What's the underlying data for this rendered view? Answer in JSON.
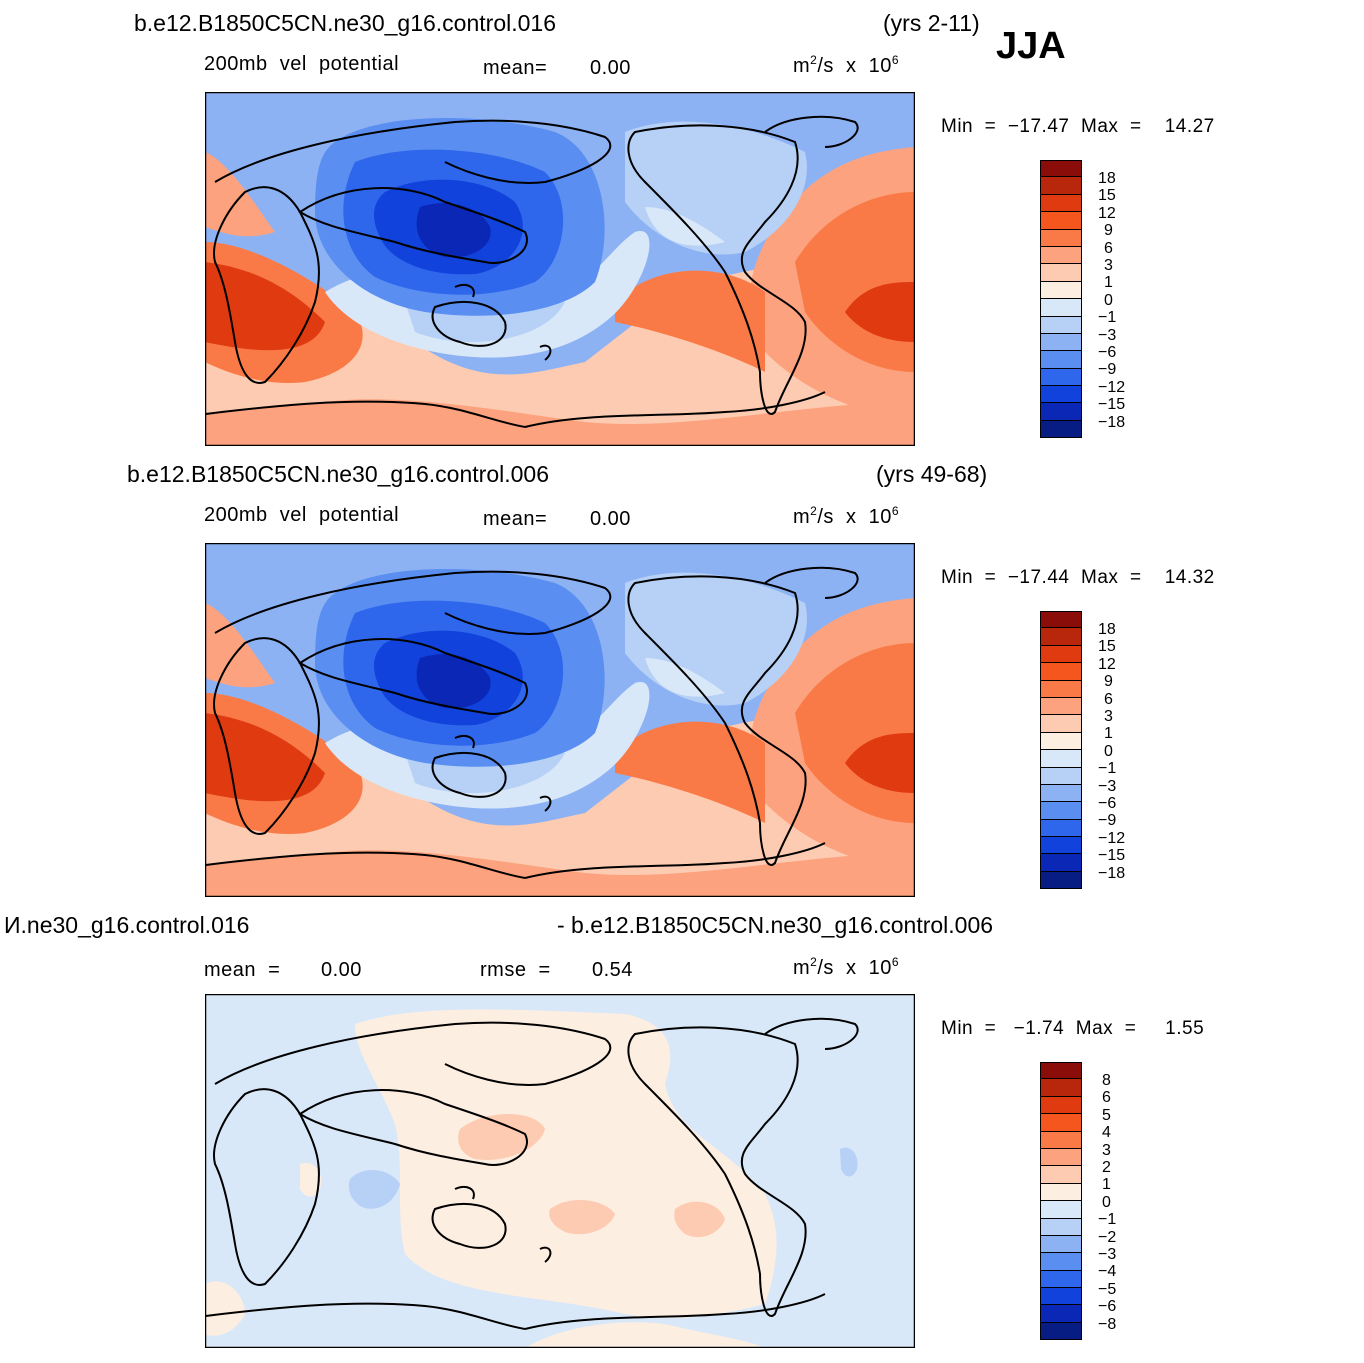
{
  "season": "JJA",
  "panels": [
    {
      "case": "b.e12.B1850C5CN.ne30_g16.control.016",
      "years": "(yrs 2-11)",
      "variable": "200mb  vel  potential",
      "mean_label": "mean=",
      "mean_value": "0.00",
      "units_base": "m",
      "units_sup": "2",
      "units_mid": "/s  x  10",
      "units_exp": "6",
      "minmax": "Min  =  −17.47  Max  =    14.27",
      "colorbar_labels": [
        "18",
        "15",
        "12",
        "9",
        "6",
        "3",
        "1",
        "0",
        "−1",
        "−3",
        "−6",
        "−9",
        "−12",
        "−15",
        "−18"
      ]
    },
    {
      "case": "b.e12.B1850C5CN.ne30_g16.control.006",
      "years": "(yrs 49-68)",
      "variable": "200mb  vel  potential",
      "mean_label": "mean=",
      "mean_value": "0.00",
      "units_base": "m",
      "units_sup": "2",
      "units_mid": "/s  x  10",
      "units_exp": "6",
      "minmax": "Min  =  −17.44  Max  =    14.32",
      "colorbar_labels": [
        "18",
        "15",
        "12",
        "9",
        "6",
        "3",
        "1",
        "0",
        "−1",
        "−3",
        "−6",
        "−9",
        "−12",
        "−15",
        "−18"
      ]
    },
    {
      "case_left": "И.ne30_g16.control.016",
      "case_right": "- b.e12.B1850C5CN.ne30_g16.control.006",
      "mean_label": "mean  =",
      "mean_value": "0.00",
      "rmse_label": "rmse  =",
      "rmse_value": "0.54",
      "units_base": "m",
      "units_sup": "2",
      "units_mid": "/s  x  10",
      "units_exp": "6",
      "minmax": "Min  =   −1.74  Max  =     1.55",
      "colorbar_labels": [
        "8",
        "6",
        "5",
        "4",
        "3",
        "2",
        "1",
        "0",
        "−1",
        "−2",
        "−3",
        "−4",
        "−5",
        "−6",
        "−8"
      ]
    }
  ],
  "palette": {
    "colorbar_top_to_bottom": [
      "#8b0d0a",
      "#b8260c",
      "#df3a10",
      "#f4561e",
      "#f97a46",
      "#fca27e",
      "#fdcbb1",
      "#fdeee2",
      "#d9e8f8",
      "#b6d0f6",
      "#8db2f4",
      "#5a8ff1",
      "#2f67ec",
      "#1143dc",
      "#0a27b5",
      "#081d84"
    ],
    "land_outline": "#000000"
  }
}
